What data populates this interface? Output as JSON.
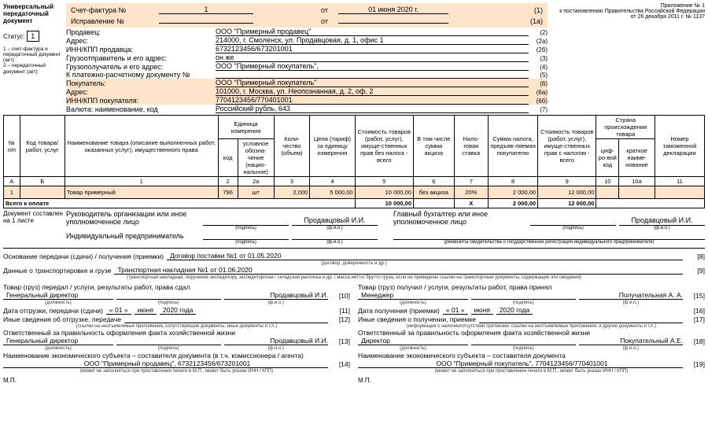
{
  "header": {
    "title": "Универсальный передаточный документ",
    "status_label": "Статус:",
    "status_value": "1",
    "note1": "1 – счет-фактура и передаточный документ (акт)",
    "note2": "2 – передаточный документ (акт)",
    "right1": "Приложение № 1",
    "right2": "к постановлению Правительства Российской Федерации",
    "right3": "от 26 декабря 2011 г. № 1137"
  },
  "invoice": {
    "sf_label": "Счет-фактура №",
    "sf_no": "1",
    "sf_from": "от",
    "sf_date": "01 июня 2020 г.",
    "corr_label": "Исправление №",
    "corr_no": "",
    "corr_date": "",
    "n1": "(1)",
    "n1a": "(1а)"
  },
  "parties": [
    {
      "label": "Продавец:",
      "value": "ООО \"Примерный продавец\"",
      "n": "(2)"
    },
    {
      "label": "Адрес:",
      "value": "214000, г. Смоленск, ул. Продавцовая, д. 1, офис 1",
      "n": "(2а)"
    },
    {
      "label": "ИНН/КПП продавца:",
      "value": "6732123456/673201001",
      "n": "(2б)"
    },
    {
      "label": "Грузоотправитель и его адрес:",
      "value": "он же",
      "n": "(3)"
    },
    {
      "label": "Грузополучатель и его адрес:",
      "value": "ООО \"Примерный покупатель\",",
      "n": "(4)"
    },
    {
      "label": "К платежно-расчетному документу №",
      "value": "",
      "n": "(5)"
    },
    {
      "label": "Покупатель:",
      "value": "ООО \"Примерный покупатель\"",
      "n": "(6)"
    },
    {
      "label": "Адрес:",
      "value": "101000, г. Москва, ул. Неопознанная, д. 2, оф. 2",
      "n": "(6а)"
    },
    {
      "label": "ИНН/КПП покупателя:",
      "value": "7704123456/770401001",
      "n": "(6б)"
    },
    {
      "label": "Валюта: наименование, код",
      "value": "Российский рубль, 643",
      "n": "(7)"
    }
  ],
  "columns": {
    "np": "№ п/п",
    "code": "Код товара/ работ, услуг",
    "name": "Наименование товара (описание выполненных работ, оказанных услуг), имущественного права",
    "unit": "Единица измерения",
    "unit_code": "код",
    "unit_name": "условное обозна-чение (нацио-нальное)",
    "qty": "Коли-чество (объем)",
    "price": "Цена (тариф) за единицу измерения",
    "cost": "Стоимость товаров (работ, услуг), имуще-ственных прав без налога - всего",
    "excise": "В том числе сумма акциза",
    "rate": "Нало-говая ставка",
    "tax": "Сумма налога, предъяв-ляемая покупателю",
    "total": "Стоимость товаров (работ, услуг), имуще-ственных прав с налогом - всего",
    "country": "Страна происхождения товара",
    "country_code": "циф-ро-вой код",
    "country_name": "краткое наиме-нование",
    "decl": "Номер таможенной декларации"
  },
  "abrow": [
    "А",
    "Б",
    "1",
    "2",
    "2а",
    "3",
    "4",
    "5",
    "6",
    "7",
    "8",
    "9",
    "10",
    "10а",
    "11"
  ],
  "rows": [
    {
      "np": "1",
      "code": "",
      "name": "Товар примерный",
      "ucode": "796",
      "uname": "шт",
      "qty": "2,000",
      "price": "5 000,00",
      "cost": "10 000,00",
      "excise": "без акциза",
      "rate": "20%",
      "tax": "2 000,00",
      "total": "12 000,00",
      "ccode": "",
      "cname": "",
      "decl": ""
    }
  ],
  "totals": {
    "label": "Всего к оплате",
    "cost": "10 000,00",
    "x": "X",
    "tax": "2 000,00",
    "total": "12 000,00"
  },
  "footer1": {
    "doc_compiled": "Документ составлен на 1 листе",
    "ruk": "Руководитель организации или иное уполномоченное лицо",
    "ruk_name": "Продавцовый И.И.",
    "glav": "Главный бухгалтер или иное уполномоченное лицо",
    "glav_name": "Продавцовый И.И.",
    "ip": "Индивидуальный предприниматель",
    "podpis": "(подпись)",
    "fio": "(ф.и.о.)",
    "rekv": "(реквизиты свидетельства о государственной регистрации индивидуального предпринимателя)"
  },
  "basis": {
    "l1": "Основание передачи (сдачи) / получения (приемки)",
    "v1": "Договор поставки №1 от 01.05.2020",
    "n1": "[8]",
    "cap1": "(договор; доверенность и др.)",
    "l2": "Данные о транспортировке и грузе",
    "v2": "Транспортная накладная №1 от 01.06.2020",
    "n2": "[9]",
    "cap2": "(транспортная накладная, поручение экспедитору, экспедиторская / складская расписка и др. / масса нетто/ брутто груза, если не приведены ссылки на транспортные документы, содержащие эти сведения)"
  },
  "bottom": {
    "left": {
      "h1": "Товар (груз) передал / услуги, результаты работ, права сдал",
      "pos": "Генеральный директор",
      "name": "Продавцовый И.И.",
      "n10": "[10]",
      "date_l": "Дата отгрузки, передачи (сдачи)",
      "d1": "« 01 »",
      "d2": "июня",
      "d3": "2020  года",
      "n11": "[11]",
      "other": "Иные сведения об отгрузке, передаче",
      "n12": "[12]",
      "other_cap": "(ссылки на неотъемлемые приложения, сопутствующие документы, иные документы и т.п.)",
      "resp": "Ответственный за правильность оформления факта хозяйственной жизни",
      "resp_pos": "Генеральный директор",
      "resp_name": "Продавцовый И.И.",
      "n13": "[13]",
      "subj": "Наименование экономического субъекта – составителя документа (в т.ч. комиссионера / агента)",
      "subj_val": "ООО \"Примерный продавец\", 6732123456/673201001",
      "n14": "[14]",
      "subj_cap": "(может не заполняться при проставлении печати в М.П., может быть указан ИНН / КПП)",
      "mp": "М.П."
    },
    "right": {
      "h1": "Товар (груз) получил / услуги, результаты работ, права принял",
      "pos": "Менеджер",
      "name": "Получательная А. А.",
      "n15": "[15]",
      "date_l": "Дата получения (приемки)",
      "d1": "« 01 »",
      "d2": "июня",
      "d3": "2020  года",
      "n16": "[16]",
      "other": "Иные сведения о получении, приемке",
      "n17": "[17]",
      "other_cap": "(информация о наличии/отсутствии претензии; ссылки на неотъемлемые приложения, и другие документы и т.п.)",
      "resp": "Ответственный за правильность оформления факта хозяйственной жизни",
      "resp_pos": "Директор",
      "resp_name": "Покупательный А.Е.",
      "n18": "[18]",
      "subj": "Наименование экономического субъекта – составителя документа",
      "subj_val": "ООО \"Примерный покупатель\", 7704123456/770401001",
      "n19": "[19]",
      "subj_cap": "(может не заполняться при проставлении печати в М.П., может быть указан ИНН / КПП)",
      "mp": "М.П."
    },
    "cap_pos": "(должность)",
    "cap_sig": "(подпись)",
    "cap_fio": "(ф.и.о.)"
  }
}
